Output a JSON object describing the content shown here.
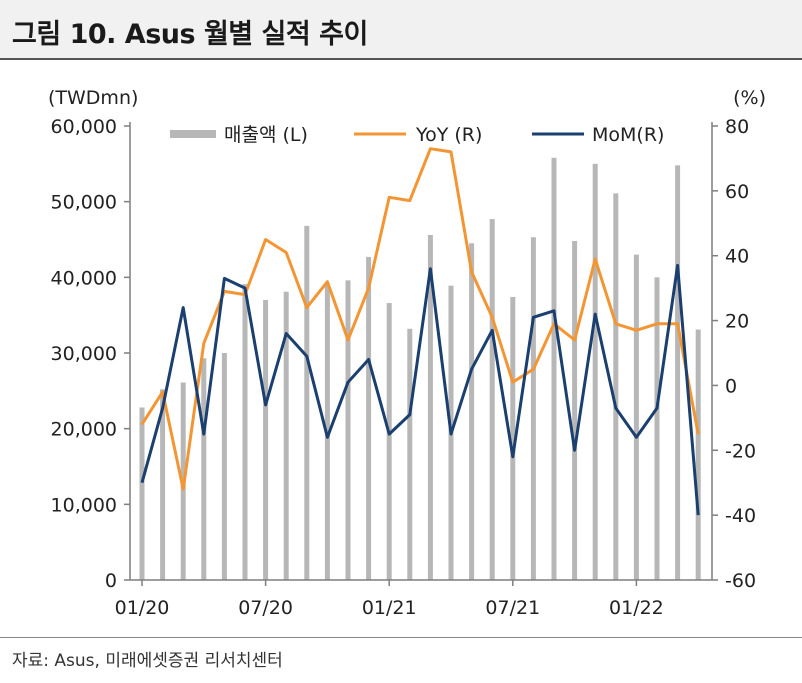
{
  "header": {
    "title": "그림 10. Asus 월별 실적 추이"
  },
  "footer": {
    "source": "자료: Asus, 미래에셋증권 리서치센터"
  },
  "colors": {
    "bar": "#b7b7b7",
    "yoy": "#f39533",
    "mom": "#1b3f6e",
    "axis": "#7f7f7f"
  },
  "chart_data": {
    "type": "bar+line",
    "left_axis": {
      "unit": "(TWDmn)",
      "min": 0,
      "max": 60000,
      "ticks": [
        0,
        10000,
        20000,
        30000,
        40000,
        50000,
        60000
      ],
      "tick_labels": [
        "0",
        "10,000",
        "20,000",
        "30,000",
        "40,000",
        "50,000",
        "60,000"
      ]
    },
    "right_axis": {
      "unit": "(%)",
      "min": -60,
      "max": 80,
      "ticks": [
        -60,
        -40,
        -20,
        0,
        20,
        40,
        60,
        80
      ],
      "tick_labels": [
        "-60",
        "-40",
        "-20",
        "0",
        "20",
        "40",
        "60",
        "80"
      ]
    },
    "x_labels": [
      {
        "index": 0,
        "label": "01/20"
      },
      {
        "index": 6,
        "label": "07/20"
      },
      {
        "index": 12,
        "label": "01/21"
      },
      {
        "index": 18,
        "label": "07/21"
      },
      {
        "index": 24,
        "label": "01/22"
      }
    ],
    "legend": {
      "position": "top",
      "entries": [
        "매출액 (L)",
        "YoY (R)",
        "MoM(R)"
      ]
    },
    "series": [
      {
        "name": "매출액 (L)",
        "axis": "left",
        "kind": "bar",
        "values": [
          22800,
          25200,
          26100,
          29300,
          30000,
          39100,
          37000,
          38100,
          46800,
          39000,
          39600,
          42700,
          36600,
          33200,
          45600,
          38900,
          44500,
          47700,
          37400,
          45300,
          55800,
          44800,
          55000,
          51100,
          43000,
          40000,
          54800,
          33100
        ]
      },
      {
        "name": "YoY (R)",
        "axis": "right",
        "kind": "line",
        "values": [
          -12,
          -2,
          -32,
          13,
          29,
          28,
          45,
          41,
          24,
          32,
          14,
          30,
          58,
          57,
          73,
          72,
          35,
          21,
          1,
          5,
          19,
          14,
          39,
          19,
          17,
          19,
          19,
          -15
        ]
      },
      {
        "name": "MoM(R)",
        "axis": "right",
        "kind": "line",
        "values": [
          -30,
          -7,
          24,
          -15,
          33,
          30,
          -6,
          16,
          9,
          -16,
          1,
          8,
          -15,
          -9,
          36,
          -15,
          5,
          17,
          -22,
          21,
          23,
          -20,
          22,
          -7,
          -16,
          -7,
          37,
          -40
        ]
      }
    ]
  }
}
